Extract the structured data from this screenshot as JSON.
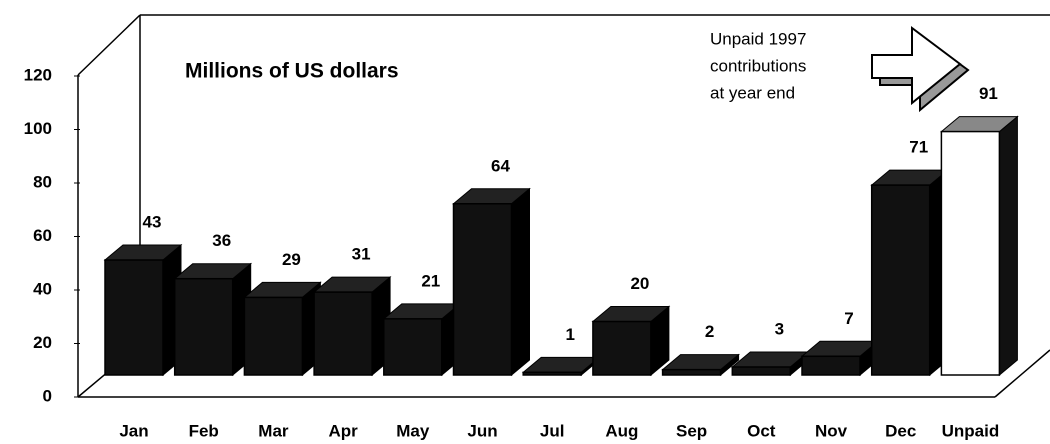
{
  "chart_data": {
    "type": "bar3d",
    "title": "Millions of US dollars",
    "annotation": [
      "Unpaid 1997",
      "contributions",
      "at year end"
    ],
    "categories": [
      "Jan",
      "Feb",
      "Mar",
      "Apr",
      "May",
      "Jun",
      "Jul",
      "Aug",
      "Sep",
      "Oct",
      "Nov",
      "Dec",
      "Unpaid"
    ],
    "values": [
      43,
      36,
      29,
      31,
      21,
      64,
      1,
      20,
      2,
      3,
      7,
      71,
      91
    ],
    "colors": [
      "#111111",
      "#111111",
      "#111111",
      "#111111",
      "#111111",
      "#111111",
      "#111111",
      "#111111",
      "#111111",
      "#111111",
      "#111111",
      "#111111",
      "#ffffff"
    ],
    "ylim": [
      0,
      120
    ],
    "yticks": [
      0,
      20,
      40,
      60,
      80,
      100,
      120
    ]
  }
}
